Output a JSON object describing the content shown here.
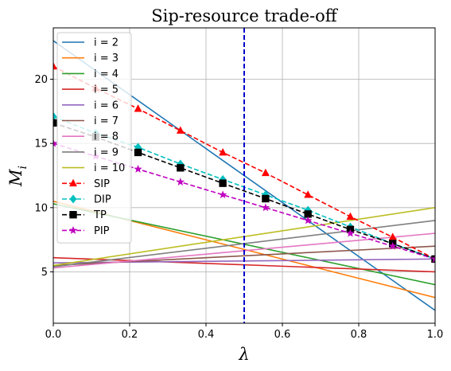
{
  "chart_data": {
    "type": "line",
    "title": "Sip-resource trade-off",
    "xlabel": "λ",
    "ylabel_main": "M",
    "ylabel_sub": "i",
    "xlim": [
      0,
      1
    ],
    "ylim": [
      1,
      24
    ],
    "xticks": [
      0,
      0.2,
      0.4,
      0.6,
      0.8,
      1
    ],
    "xtick_labels": [
      "0.0",
      "0.2",
      "0.4",
      "0.6",
      "0.8",
      "1.0"
    ],
    "yticks": [
      5,
      10,
      15,
      20
    ],
    "ytick_labels": [
      "5",
      "10",
      "15",
      "20"
    ],
    "grid": true,
    "legend_position": "upper-left",
    "vline": {
      "x": 0.5,
      "color": "#0000cc",
      "style": "dashed"
    },
    "series": [
      {
        "name": "i = 2",
        "color": "#1f77b4",
        "x": [
          0,
          1
        ],
        "y": [
          23,
          2
        ],
        "marker": "none",
        "dashed": false
      },
      {
        "name": "i = 3",
        "color": "#ff7f0e",
        "x": [
          0,
          1
        ],
        "y": [
          10.5,
          3
        ],
        "marker": "none",
        "dashed": false
      },
      {
        "name": "i = 4",
        "color": "#2ca02c",
        "x": [
          0,
          1
        ],
        "y": [
          10.3,
          4
        ],
        "marker": "none",
        "dashed": false
      },
      {
        "name": "i = 5",
        "color": "#d62728",
        "x": [
          0,
          1
        ],
        "y": [
          6.1,
          5
        ],
        "marker": "none",
        "dashed": false
      },
      {
        "name": "i = 6",
        "color": "#9467bd",
        "x": [
          0,
          1
        ],
        "y": [
          5.7,
          6
        ],
        "marker": "none",
        "dashed": false
      },
      {
        "name": "i = 7",
        "color": "#8c564b",
        "x": [
          0,
          1
        ],
        "y": [
          5.5,
          7
        ],
        "marker": "none",
        "dashed": false
      },
      {
        "name": "i = 8",
        "color": "#e377c2",
        "x": [
          0,
          1
        ],
        "y": [
          5.3,
          8
        ],
        "marker": "none",
        "dashed": false
      },
      {
        "name": "i = 9",
        "color": "#7f7f7f",
        "x": [
          0,
          1
        ],
        "y": [
          5.4,
          9
        ],
        "marker": "none",
        "dashed": false
      },
      {
        "name": "i = 10",
        "color": "#bcbd22",
        "x": [
          0,
          1
        ],
        "y": [
          5.5,
          10
        ],
        "marker": "none",
        "dashed": false
      },
      {
        "name": "SIP",
        "color": "#ff0000",
        "x": [
          0,
          0.111,
          0.222,
          0.333,
          0.444,
          0.556,
          0.667,
          0.778,
          0.889,
          1.0
        ],
        "y": [
          21,
          19.3,
          17.7,
          16.0,
          14.3,
          12.7,
          11.0,
          9.3,
          7.7,
          6.0
        ],
        "marker": "triangle",
        "dashed": true
      },
      {
        "name": "DIP",
        "color": "#00bfbf",
        "x": [
          0,
          0.111,
          0.222,
          0.333,
          0.444,
          0.556,
          0.667,
          0.778,
          0.889,
          1.0
        ],
        "y": [
          17.1,
          15.8,
          14.7,
          13.4,
          12.2,
          11.0,
          9.8,
          8.5,
          7.2,
          6.0
        ],
        "marker": "diamond",
        "dashed": true
      },
      {
        "name": "TP",
        "color": "#000000",
        "x": [
          0,
          0.111,
          0.222,
          0.333,
          0.444,
          0.556,
          0.667,
          0.778,
          0.889,
          1.0
        ],
        "y": [
          16.6,
          15.5,
          14.3,
          13.1,
          11.9,
          10.7,
          9.5,
          8.3,
          7.2,
          6.0
        ],
        "marker": "square",
        "dashed": true
      },
      {
        "name": "PIP",
        "color": "#bf00bf",
        "x": [
          0,
          0.111,
          0.222,
          0.333,
          0.444,
          0.556,
          0.667,
          0.778,
          0.889,
          1.0
        ],
        "y": [
          15.0,
          14.0,
          13.0,
          12.0,
          11.0,
          10.0,
          9.0,
          8.0,
          7.0,
          6.0
        ],
        "marker": "star",
        "dashed": true
      }
    ]
  }
}
